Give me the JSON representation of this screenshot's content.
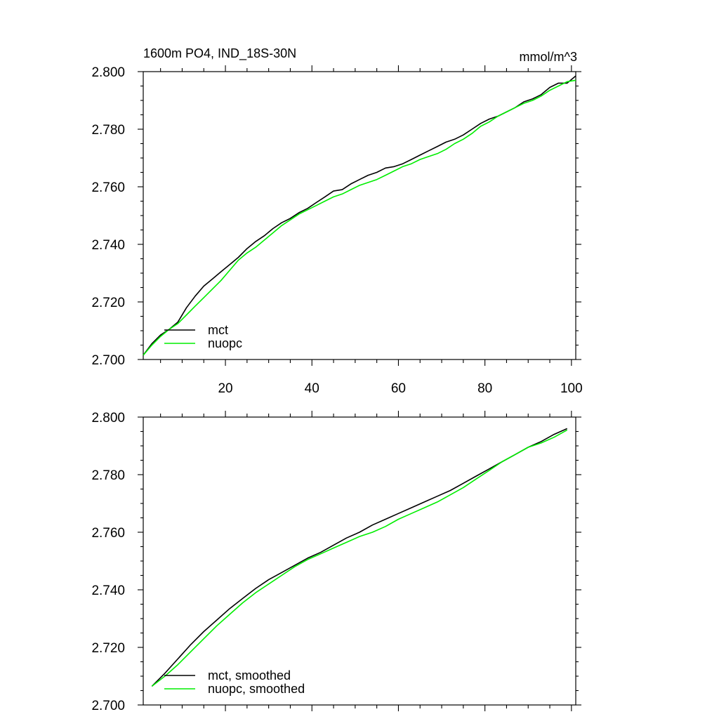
{
  "chart_data": [
    {
      "type": "line",
      "title": "1600m PO4, IND_18S-30N",
      "units": "mmol/m^3",
      "xlim": [
        1,
        101
      ],
      "ylim": [
        2.7,
        2.8
      ],
      "x_ticks": [
        20,
        40,
        60,
        80,
        100
      ],
      "y_ticks": [
        "2.700",
        "2.720",
        "2.740",
        "2.760",
        "2.780",
        "2.800"
      ],
      "legend_position": "bottom-left",
      "series": [
        {
          "name": "mct",
          "color": "#000000",
          "x": [
            1,
            3,
            5,
            7,
            9,
            11,
            13,
            15,
            17,
            19,
            21,
            23,
            25,
            27,
            29,
            31,
            33,
            35,
            37,
            39,
            41,
            43,
            45,
            47,
            49,
            51,
            53,
            55,
            57,
            59,
            61,
            63,
            65,
            67,
            69,
            71,
            73,
            75,
            77,
            79,
            81,
            83,
            85,
            87,
            89,
            91,
            93,
            95,
            97,
            99,
            101
          ],
          "y": [
            2.7015,
            2.7055,
            2.7085,
            2.7105,
            2.713,
            2.718,
            2.722,
            2.7255,
            2.728,
            2.7305,
            2.733,
            2.7355,
            2.7385,
            2.741,
            2.743,
            2.7455,
            2.7475,
            2.749,
            2.751,
            2.7525,
            2.7545,
            2.7565,
            2.7585,
            2.759,
            2.761,
            2.7625,
            2.764,
            2.765,
            2.7665,
            2.767,
            2.768,
            2.7695,
            2.771,
            2.7725,
            2.774,
            2.7755,
            2.7765,
            2.778,
            2.78,
            2.782,
            2.7835,
            2.7845,
            2.786,
            2.7875,
            2.7895,
            2.7905,
            2.792,
            2.7945,
            2.796,
            2.796,
            2.7985
          ]
        },
        {
          "name": "nuopc",
          "color": "#00ee00",
          "x": [
            1,
            3,
            5,
            7,
            9,
            11,
            13,
            15,
            17,
            19,
            21,
            23,
            25,
            27,
            29,
            31,
            33,
            35,
            37,
            39,
            41,
            43,
            45,
            47,
            49,
            51,
            53,
            55,
            57,
            59,
            61,
            63,
            65,
            67,
            69,
            71,
            73,
            75,
            77,
            79,
            81,
            83,
            85,
            87,
            89,
            91,
            93,
            95,
            97,
            99,
            101
          ],
          "y": [
            2.7015,
            2.705,
            2.708,
            2.7105,
            2.7125,
            2.7155,
            2.7185,
            2.7215,
            2.7245,
            2.7275,
            2.731,
            2.7345,
            2.737,
            2.739,
            2.7415,
            2.744,
            2.7465,
            2.7485,
            2.7505,
            2.752,
            2.7535,
            2.755,
            2.7565,
            2.7575,
            2.759,
            2.7605,
            2.7615,
            2.7625,
            2.764,
            2.7655,
            2.767,
            2.768,
            2.7695,
            2.7705,
            2.7715,
            2.773,
            2.775,
            2.7765,
            2.7785,
            2.781,
            2.7825,
            2.7845,
            2.786,
            2.7875,
            2.789,
            2.79,
            2.7915,
            2.7935,
            2.795,
            2.7965,
            2.797
          ]
        }
      ]
    },
    {
      "type": "line",
      "title": "",
      "xlim": [
        1,
        101
      ],
      "ylim": [
        2.7,
        2.8
      ],
      "y_ticks": [
        "2.700",
        "2.720",
        "2.740",
        "2.760",
        "2.780",
        "2.800"
      ],
      "legend_position": "bottom-left",
      "series": [
        {
          "name": "mct, smoothed",
          "color": "#000000",
          "x": [
            3,
            6,
            9,
            12,
            15,
            18,
            21,
            24,
            27,
            30,
            33,
            36,
            39,
            42,
            45,
            48,
            51,
            54,
            57,
            60,
            63,
            66,
            69,
            72,
            75,
            78,
            81,
            84,
            87,
            90,
            93,
            96,
            99
          ],
          "y": [
            2.7065,
            2.711,
            2.716,
            2.721,
            2.7255,
            2.7295,
            2.7335,
            2.737,
            2.7405,
            2.7435,
            2.746,
            2.7485,
            2.751,
            2.753,
            2.7555,
            2.758,
            2.76,
            2.7625,
            2.7645,
            2.7665,
            2.7685,
            2.7705,
            2.7725,
            2.7745,
            2.777,
            2.7795,
            2.782,
            2.7845,
            2.787,
            2.7895,
            2.7915,
            2.794,
            2.796
          ]
        },
        {
          "name": "nuopc, smoothed",
          "color": "#00ee00",
          "x": [
            3,
            6,
            9,
            12,
            15,
            18,
            21,
            24,
            27,
            30,
            33,
            36,
            39,
            42,
            45,
            48,
            51,
            54,
            57,
            60,
            63,
            66,
            69,
            72,
            75,
            78,
            81,
            84,
            87,
            90,
            93,
            96,
            99
          ],
          "y": [
            2.7065,
            2.71,
            2.714,
            2.7185,
            2.723,
            2.7275,
            2.7315,
            2.7355,
            2.739,
            2.742,
            2.745,
            2.748,
            2.7505,
            2.7525,
            2.7545,
            2.7565,
            2.7585,
            2.76,
            2.762,
            2.7645,
            2.7665,
            2.7685,
            2.7705,
            2.773,
            2.7755,
            2.7785,
            2.7815,
            2.7845,
            2.787,
            2.7895,
            2.791,
            2.793,
            2.7955
          ]
        }
      ]
    }
  ]
}
